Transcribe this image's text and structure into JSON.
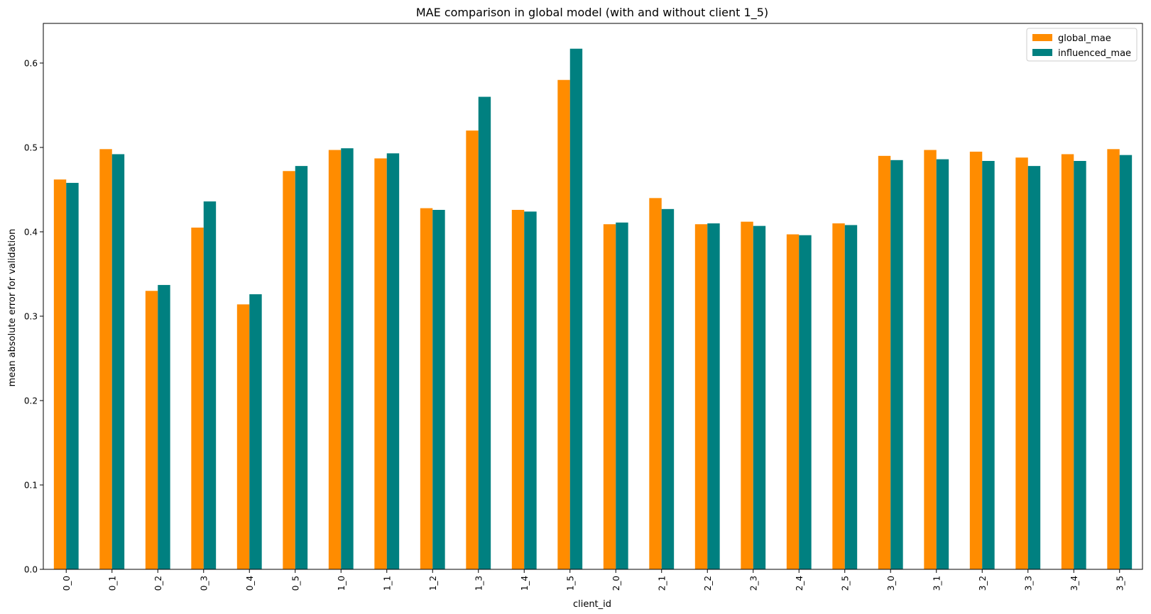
{
  "chart_data": {
    "type": "bar",
    "title": "MAE comparison in global model (with and without client 1_5)",
    "xlabel": "client_id",
    "ylabel": "mean absolute error for validation",
    "ylim": [
      0,
      0.647
    ],
    "yticks": [
      "0.0",
      "0.1",
      "0.2",
      "0.3",
      "0.4",
      "0.5",
      "0.6"
    ],
    "legend_position": "top-right",
    "grid": false,
    "categories": [
      "0_0",
      "0_1",
      "0_2",
      "0_3",
      "0_4",
      "0_5",
      "1_0",
      "1_1",
      "1_2",
      "1_3",
      "1_4",
      "1_5",
      "2_0",
      "2_1",
      "2_2",
      "2_3",
      "2_4",
      "2_5",
      "3_0",
      "3_1",
      "3_2",
      "3_3",
      "3_4",
      "3_5"
    ],
    "series": [
      {
        "name": "global_mae",
        "color": "#ff8c00",
        "values": [
          0.462,
          0.498,
          0.33,
          0.405,
          0.314,
          0.472,
          0.497,
          0.487,
          0.428,
          0.52,
          0.426,
          0.58,
          0.409,
          0.44,
          0.409,
          0.412,
          0.397,
          0.41,
          0.49,
          0.497,
          0.495,
          0.488,
          0.492,
          0.498
        ]
      },
      {
        "name": "influenced_mae",
        "color": "#008080",
        "values": [
          0.458,
          0.492,
          0.337,
          0.436,
          0.326,
          0.478,
          0.499,
          0.493,
          0.426,
          0.56,
          0.424,
          0.617,
          0.411,
          0.427,
          0.41,
          0.407,
          0.396,
          0.408,
          0.485,
          0.486,
          0.484,
          0.478,
          0.484,
          0.491
        ]
      }
    ]
  }
}
